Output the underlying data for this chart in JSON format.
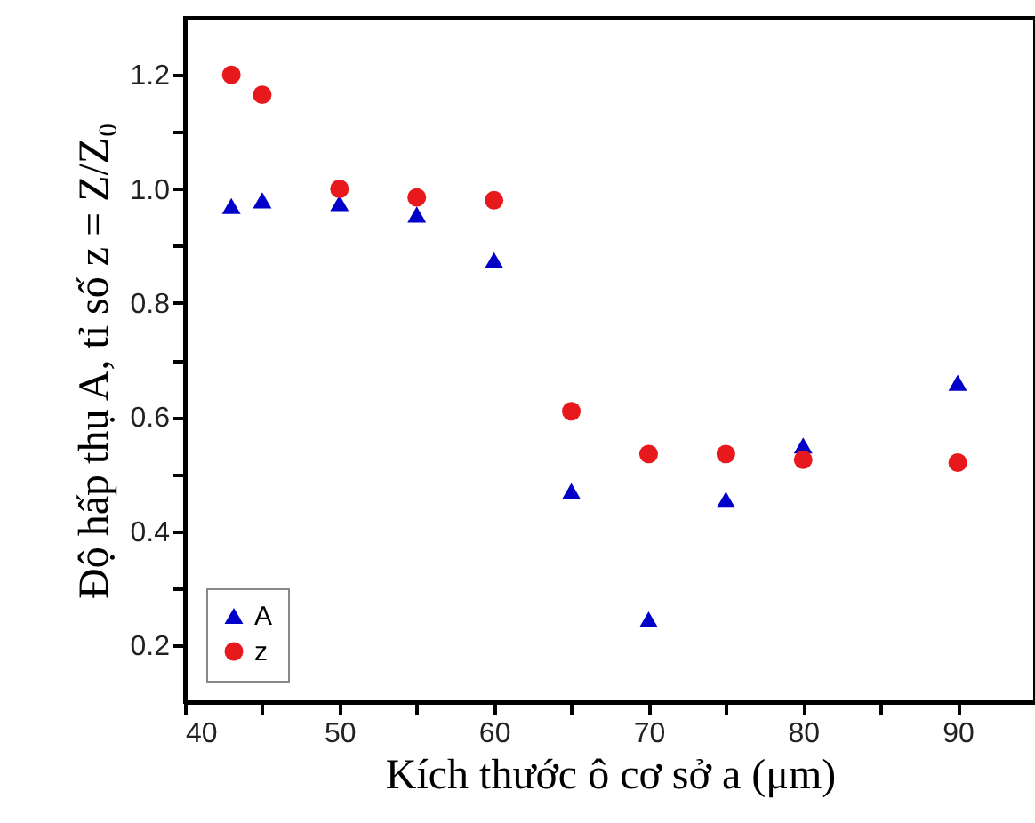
{
  "chart_data": {
    "type": "scatter",
    "xlabel": "Kích thước ô cơ sở a (μm)",
    "ylabel": "Độ hấp thụ A, tỉ số z = Z/Z₀",
    "x": [
      43,
      45,
      50,
      55,
      60,
      65,
      70,
      75,
      80,
      90
    ],
    "series": [
      {
        "name": "A",
        "color": "#0000c8",
        "marker": "triangle",
        "values": [
          0.97,
          0.98,
          0.975,
          0.955,
          0.875,
          0.47,
          0.245,
          0.455,
          0.55,
          0.66
        ]
      },
      {
        "name": "z",
        "color": "#e8191c",
        "marker": "circle",
        "values": [
          1.2,
          1.165,
          1.0,
          0.985,
          0.98,
          0.61,
          0.535,
          0.535,
          0.525,
          0.52
        ]
      }
    ],
    "xlim": [
      40,
      95
    ],
    "xticks": [
      40,
      {
        "value": 45,
        "label": null
      },
      50,
      {
        "value": 55,
        "label": null
      },
      60,
      {
        "value": 65,
        "label": null
      },
      70,
      {
        "value": 75,
        "label": null
      },
      80,
      {
        "value": 85,
        "label": null
      },
      90
    ],
    "ylim": [
      0.1,
      1.3
    ],
    "yticks": [
      0.2,
      {
        "value": 0.3,
        "label": null
      },
      0.4,
      {
        "value": 0.5,
        "label": null
      },
      0.6,
      {
        "value": 0.7,
        "label": null
      },
      0.8,
      {
        "value": 0.9,
        "label": null
      },
      {
        "value": 1,
        "label": "1.0"
      },
      {
        "value": 1.1,
        "label": null
      },
      1.2
    ],
    "legend": "bottom left",
    "grid": false
  }
}
